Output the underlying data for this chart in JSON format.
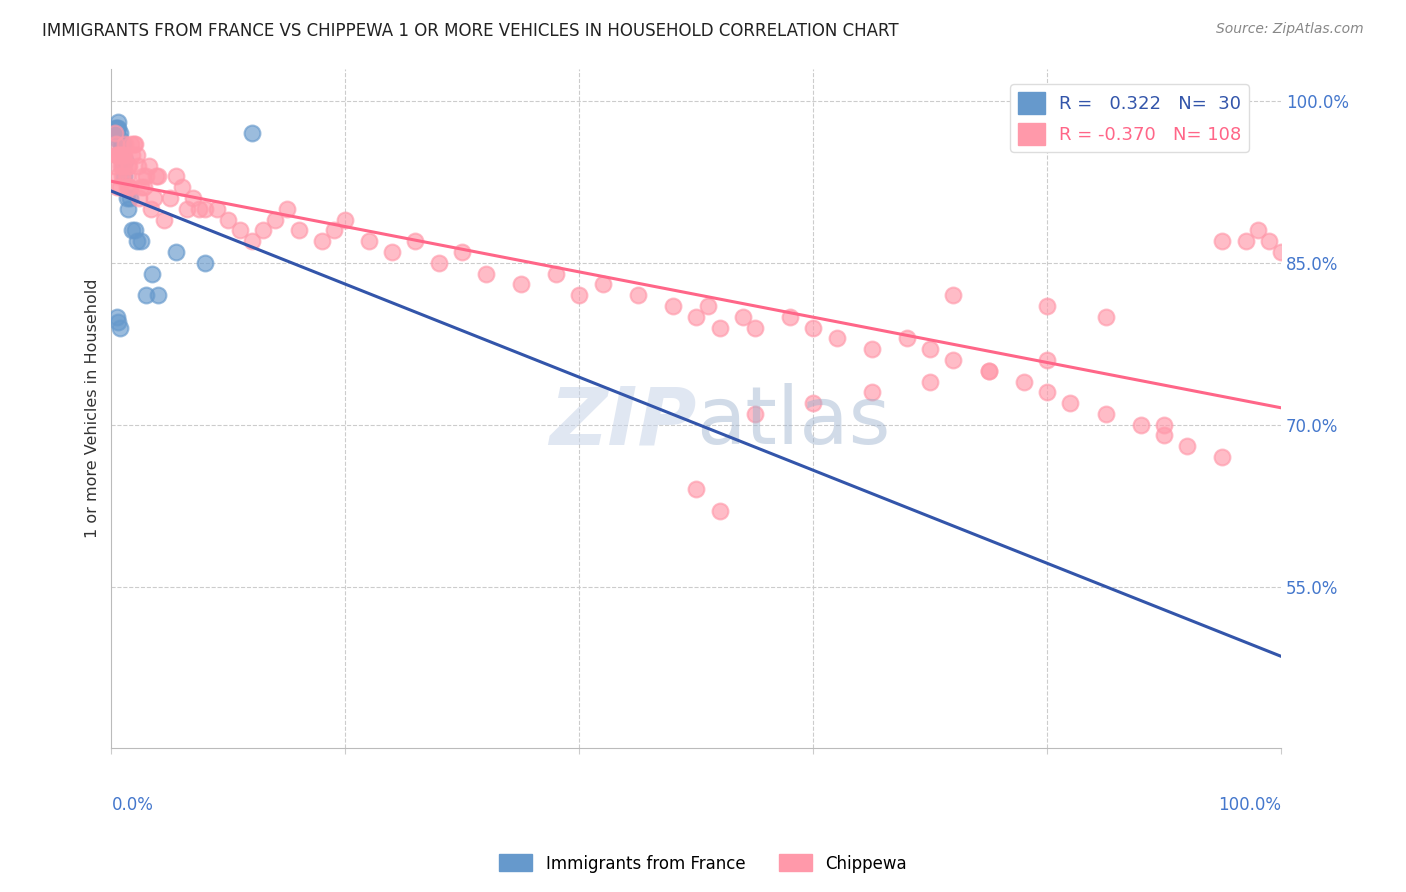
{
  "title": "IMMIGRANTS FROM FRANCE VS CHIPPEWA 1 OR MORE VEHICLES IN HOUSEHOLD CORRELATION CHART",
  "source": "Source: ZipAtlas.com",
  "ylabel": "1 or more Vehicles in Household",
  "ytick_values": [
    0.55,
    0.7,
    0.85,
    1.0
  ],
  "ytick_labels": [
    "55.0%",
    "70.0%",
    "85.0%",
    "100.0%"
  ],
  "xlim": [
    0.0,
    1.0
  ],
  "ylim": [
    0.4,
    1.03
  ],
  "legend_blue_R": "0.322",
  "legend_blue_N": "30",
  "legend_pink_R": "-0.370",
  "legend_pink_N": "108",
  "blue_color": "#6699cc",
  "pink_color": "#ff99aa",
  "blue_line_color": "#3355aa",
  "pink_line_color": "#ff6688",
  "background_color": "#ffffff",
  "blue_x": [
    0.003,
    0.004,
    0.005,
    0.005,
    0.006,
    0.006,
    0.007,
    0.007,
    0.008,
    0.009,
    0.01,
    0.01,
    0.011,
    0.012,
    0.013,
    0.014,
    0.016,
    0.018,
    0.02,
    0.022,
    0.025,
    0.03,
    0.035,
    0.04,
    0.055,
    0.08,
    0.005,
    0.006,
    0.007,
    0.12
  ],
  "blue_y": [
    0.975,
    0.97,
    0.975,
    0.965,
    0.98,
    0.975,
    0.97,
    0.965,
    0.955,
    0.96,
    0.94,
    0.96,
    0.93,
    0.945,
    0.91,
    0.9,
    0.91,
    0.88,
    0.88,
    0.87,
    0.87,
    0.82,
    0.84,
    0.82,
    0.86,
    0.85,
    0.8,
    0.795,
    0.79,
    0.97
  ],
  "pink_x": [
    0.002,
    0.003,
    0.004,
    0.004,
    0.005,
    0.005,
    0.006,
    0.006,
    0.007,
    0.007,
    0.008,
    0.009,
    0.009,
    0.01,
    0.01,
    0.011,
    0.012,
    0.013,
    0.013,
    0.014,
    0.015,
    0.015,
    0.016,
    0.017,
    0.018,
    0.019,
    0.02,
    0.022,
    0.023,
    0.024,
    0.025,
    0.027,
    0.028,
    0.03,
    0.032,
    0.034,
    0.036,
    0.038,
    0.04,
    0.045,
    0.05,
    0.055,
    0.06,
    0.065,
    0.07,
    0.075,
    0.08,
    0.09,
    0.1,
    0.11,
    0.12,
    0.13,
    0.14,
    0.15,
    0.16,
    0.18,
    0.19,
    0.2,
    0.22,
    0.24,
    0.26,
    0.28,
    0.3,
    0.32,
    0.35,
    0.38,
    0.4,
    0.42,
    0.45,
    0.48,
    0.5,
    0.51,
    0.52,
    0.54,
    0.55,
    0.58,
    0.6,
    0.62,
    0.65,
    0.68,
    0.7,
    0.72,
    0.75,
    0.78,
    0.8,
    0.82,
    0.85,
    0.88,
    0.9,
    0.92,
    0.95,
    0.97,
    0.98,
    0.99,
    1.0,
    0.72,
    0.8,
    0.85,
    0.9,
    0.95,
    0.5,
    0.52,
    0.55,
    0.6,
    0.65,
    0.7,
    0.75,
    0.8
  ],
  "pink_y": [
    0.94,
    0.97,
    0.96,
    0.95,
    0.95,
    0.92,
    0.95,
    0.93,
    0.95,
    0.92,
    0.94,
    0.95,
    0.93,
    0.95,
    0.94,
    0.95,
    0.96,
    0.93,
    0.92,
    0.94,
    0.94,
    0.92,
    0.92,
    0.96,
    0.95,
    0.96,
    0.96,
    0.95,
    0.94,
    0.91,
    0.92,
    0.93,
    0.92,
    0.93,
    0.94,
    0.9,
    0.91,
    0.93,
    0.93,
    0.89,
    0.91,
    0.93,
    0.92,
    0.9,
    0.91,
    0.9,
    0.9,
    0.9,
    0.89,
    0.88,
    0.87,
    0.88,
    0.89,
    0.9,
    0.88,
    0.87,
    0.88,
    0.89,
    0.87,
    0.86,
    0.87,
    0.85,
    0.86,
    0.84,
    0.83,
    0.84,
    0.82,
    0.83,
    0.82,
    0.81,
    0.8,
    0.81,
    0.79,
    0.8,
    0.79,
    0.8,
    0.79,
    0.78,
    0.77,
    0.78,
    0.77,
    0.76,
    0.75,
    0.74,
    0.73,
    0.72,
    0.71,
    0.7,
    0.69,
    0.68,
    0.87,
    0.87,
    0.88,
    0.87,
    0.86,
    0.82,
    0.81,
    0.8,
    0.7,
    0.67,
    0.64,
    0.62,
    0.71,
    0.72,
    0.73,
    0.74,
    0.75,
    0.76
  ]
}
